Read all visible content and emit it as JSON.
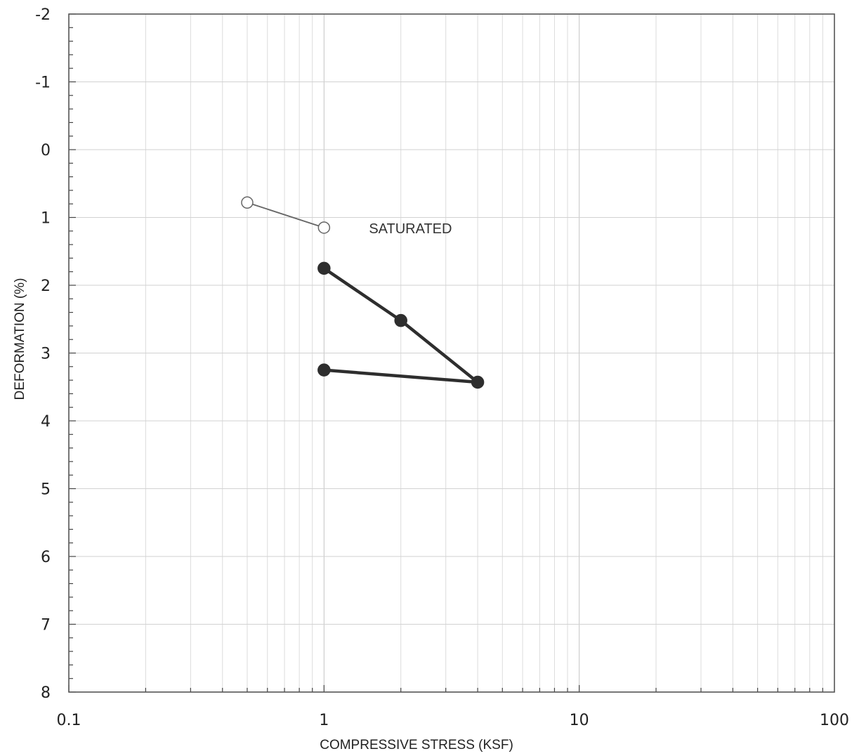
{
  "chart_data": {
    "type": "scatter",
    "title": "",
    "xlabel": "COMPRESSIVE STRESS (KSF)",
    "ylabel": "DEFORMATION (%)",
    "x_scale": "log",
    "xlim": [
      0.1,
      100
    ],
    "ylim": [
      8,
      -2
    ],
    "y_inverted": true,
    "x_ticks": [
      0.1,
      1,
      10,
      100
    ],
    "x_tick_labels": [
      "0.1",
      "1",
      "10",
      "100"
    ],
    "y_ticks": [
      -2,
      -1,
      0,
      1,
      2,
      3,
      4,
      5,
      6,
      7,
      8
    ],
    "y_tick_labels": [
      "-2",
      "-1",
      "0",
      "1",
      "2",
      "3",
      "4",
      "5",
      "6",
      "7",
      "8"
    ],
    "grid": true,
    "series": [
      {
        "style": "open-circle-thin-line",
        "color": "#666666",
        "points": [
          {
            "x": 0.5,
            "y": 0.78
          },
          {
            "x": 1,
            "y": 1.15
          }
        ]
      },
      {
        "style": "filled-circle-thick-line",
        "color": "#2e2e2e",
        "points": [
          {
            "x": 1,
            "y": 1.75
          },
          {
            "x": 2,
            "y": 2.52
          },
          {
            "x": 4,
            "y": 3.43
          },
          {
            "x": 1,
            "y": 3.25
          }
        ]
      }
    ],
    "annotations": [
      {
        "text": "SATURATED",
        "x": 1.5,
        "y": 1.15
      }
    ]
  }
}
